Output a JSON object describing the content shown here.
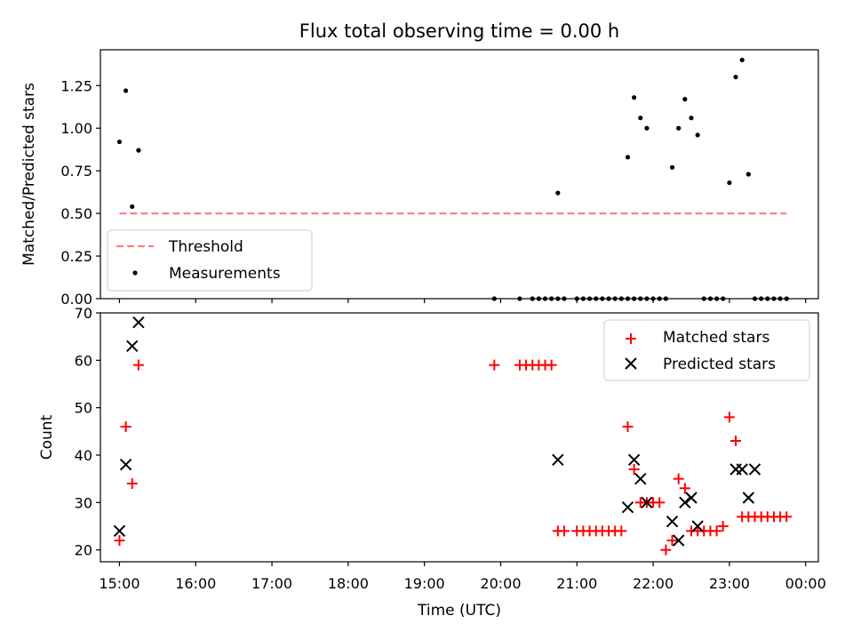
{
  "figure": {
    "title": "Flux total observing time = 0.00 h"
  },
  "chart_data": [
    {
      "type": "scatter",
      "title": "Flux total observing time = 0.00 h",
      "xlabel": "",
      "ylabel": "Matched/Predicted stars",
      "xlim": [
        "14:45",
        "00:10"
      ],
      "ylim": [
        0,
        1.46
      ],
      "xticks": [
        "15:00",
        "16:00",
        "17:00",
        "18:00",
        "19:00",
        "20:00",
        "21:00",
        "22:00",
        "23:00",
        "00:00"
      ],
      "yticks": [
        "0.00",
        "0.25",
        "0.50",
        "0.75",
        "1.00",
        "1.25"
      ],
      "ytick_values": [
        0,
        0.25,
        0.5,
        0.75,
        1.0,
        1.25
      ],
      "legend_position": "lower-left",
      "colors": {
        "threshold": "#ff7f7f",
        "measurements": "#000000"
      },
      "series": [
        {
          "name": "Threshold",
          "kind": "line-dashed",
          "x": [
            "15:00",
            "23:45"
          ],
          "y": [
            0.5,
            0.5
          ]
        },
        {
          "name": "Measurements",
          "kind": "points",
          "x": [
            "15:00",
            "15:05",
            "15:10",
            "15:15",
            "19:55",
            "20:15",
            "20:25",
            "20:30",
            "20:35",
            "20:40",
            "20:45",
            "20:50",
            "21:00",
            "21:05",
            "21:10",
            "21:15",
            "21:20",
            "21:25",
            "21:30",
            "21:35",
            "21:40",
            "21:45",
            "21:50",
            "21:55",
            "20:45",
            "21:40",
            "21:45",
            "21:50",
            "21:55",
            "22:00",
            "22:05",
            "22:10",
            "22:15",
            "22:20",
            "22:25",
            "22:30",
            "22:35",
            "22:40",
            "22:45",
            "22:50",
            "22:55",
            "23:00",
            "23:05",
            "23:10",
            "23:15",
            "23:20",
            "23:25",
            "23:30",
            "23:35",
            "23:40",
            "23:45"
          ],
          "y": [
            0.92,
            1.22,
            0.54,
            0.87,
            0,
            0,
            0,
            0,
            0,
            0,
            0,
            0,
            0,
            0,
            0,
            0,
            0,
            0,
            0,
            0,
            0,
            0,
            0,
            0,
            0.62,
            0.83,
            1.18,
            1.06,
            1.0,
            0,
            0,
            0,
            0.77,
            1.0,
            1.17,
            1.06,
            0.96,
            0,
            0,
            0,
            0,
            0.68,
            1.3,
            1.4,
            0.73,
            0,
            0,
            0,
            0,
            0,
            0
          ]
        }
      ]
    },
    {
      "type": "scatter",
      "title": "",
      "xlabel": "Time (UTC)",
      "ylabel": "Count",
      "xlim": [
        "14:45",
        "00:10"
      ],
      "ylim": [
        17.5,
        70
      ],
      "xticks": [
        "15:00",
        "16:00",
        "17:00",
        "18:00",
        "19:00",
        "20:00",
        "21:00",
        "22:00",
        "23:00",
        "00:00"
      ],
      "yticks": [
        "20",
        "30",
        "40",
        "50",
        "60",
        "70"
      ],
      "ytick_values": [
        20,
        30,
        40,
        50,
        60,
        70
      ],
      "legend_position": "upper-right",
      "colors": {
        "matched": "#ff0000",
        "predicted": "#000000"
      },
      "series": [
        {
          "name": "Matched stars",
          "marker": "+",
          "x": [
            "15:00",
            "15:05",
            "15:10",
            "15:15",
            "19:55",
            "20:15",
            "20:20",
            "20:25",
            "20:30",
            "20:35",
            "20:40",
            "20:45",
            "20:50",
            "21:00",
            "21:05",
            "21:10",
            "21:15",
            "21:20",
            "21:25",
            "21:30",
            "21:35",
            "21:40",
            "21:45",
            "21:50",
            "21:55",
            "22:00",
            "22:05",
            "22:10",
            "22:15",
            "22:20",
            "22:25",
            "22:30",
            "22:35",
            "22:40",
            "22:45",
            "22:50",
            "22:55",
            "23:00",
            "23:05",
            "23:10",
            "23:15",
            "23:20",
            "23:25",
            "23:30",
            "23:35",
            "23:40",
            "23:45"
          ],
          "y": [
            22,
            46,
            34,
            59,
            59,
            59,
            59,
            59,
            59,
            59,
            59,
            24,
            24,
            24,
            24,
            24,
            24,
            24,
            24,
            24,
            24,
            46,
            37,
            30,
            30,
            30,
            30,
            20,
            22,
            35,
            33,
            24,
            24,
            24,
            24,
            24,
            25,
            48,
            43,
            27,
            27,
            27,
            27,
            27,
            27,
            27,
            27
          ]
        },
        {
          "name": "Predicted stars",
          "marker": "x",
          "x": [
            "15:00",
            "15:05",
            "15:10",
            "15:15",
            "20:45",
            "21:40",
            "21:45",
            "21:50",
            "21:55",
            "22:15",
            "22:20",
            "22:25",
            "22:30",
            "22:35",
            "23:05",
            "23:10",
            "23:15",
            "23:20"
          ],
          "y": [
            24,
            38,
            63,
            68,
            39,
            29,
            39,
            35,
            30,
            26,
            22,
            30,
            31,
            25,
            37,
            37,
            31,
            37
          ]
        }
      ]
    }
  ]
}
